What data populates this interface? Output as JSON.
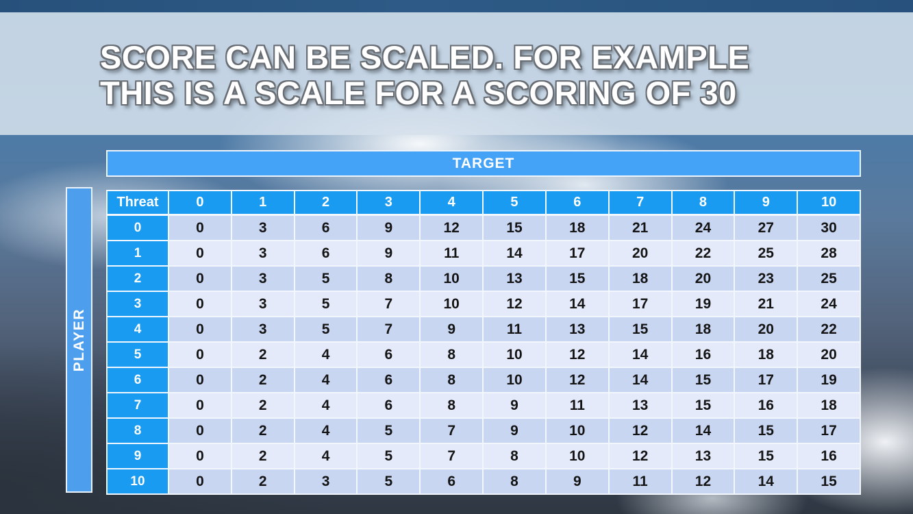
{
  "title": {
    "line1": "SCORE CAN BE SCALED. FOR EXAMPLE",
    "line2": "THIS IS A SCALE FOR A SCORING OF 30"
  },
  "table": {
    "target_label": "TARGET",
    "player_label": "PLAYER",
    "corner_label": "Threat",
    "column_headers": [
      "0",
      "1",
      "2",
      "3",
      "4",
      "5",
      "6",
      "7",
      "8",
      "9",
      "10"
    ],
    "row_headers": [
      "0",
      "1",
      "2",
      "3",
      "4",
      "5",
      "6",
      "7",
      "8",
      "9",
      "10"
    ],
    "rows": [
      [
        0,
        3,
        6,
        9,
        12,
        15,
        18,
        21,
        24,
        27,
        30
      ],
      [
        0,
        3,
        6,
        9,
        11,
        14,
        17,
        20,
        22,
        25,
        28
      ],
      [
        0,
        3,
        5,
        8,
        10,
        13,
        15,
        18,
        20,
        23,
        25
      ],
      [
        0,
        3,
        5,
        7,
        10,
        12,
        14,
        17,
        19,
        21,
        24
      ],
      [
        0,
        3,
        5,
        7,
        9,
        11,
        13,
        15,
        18,
        20,
        22
      ],
      [
        0,
        2,
        4,
        6,
        8,
        10,
        12,
        14,
        16,
        18,
        20
      ],
      [
        0,
        2,
        4,
        6,
        8,
        10,
        12,
        14,
        15,
        17,
        19
      ],
      [
        0,
        2,
        4,
        6,
        8,
        9,
        11,
        13,
        15,
        16,
        18
      ],
      [
        0,
        2,
        4,
        5,
        7,
        9,
        10,
        12,
        14,
        15,
        17
      ],
      [
        0,
        2,
        4,
        5,
        7,
        8,
        10,
        12,
        13,
        15,
        16
      ],
      [
        0,
        2,
        3,
        5,
        6,
        8,
        9,
        11,
        12,
        14,
        15
      ]
    ]
  },
  "colors": {
    "header_blue": "#1a9bf2",
    "target_blue": "#45a3f7",
    "player_blue": "#4d9fee",
    "row_band_dark": "#c8d6f2",
    "row_band_light": "#e4eafa",
    "grid_line": "#f2f7fd",
    "top_strip": "#2d5a86"
  }
}
